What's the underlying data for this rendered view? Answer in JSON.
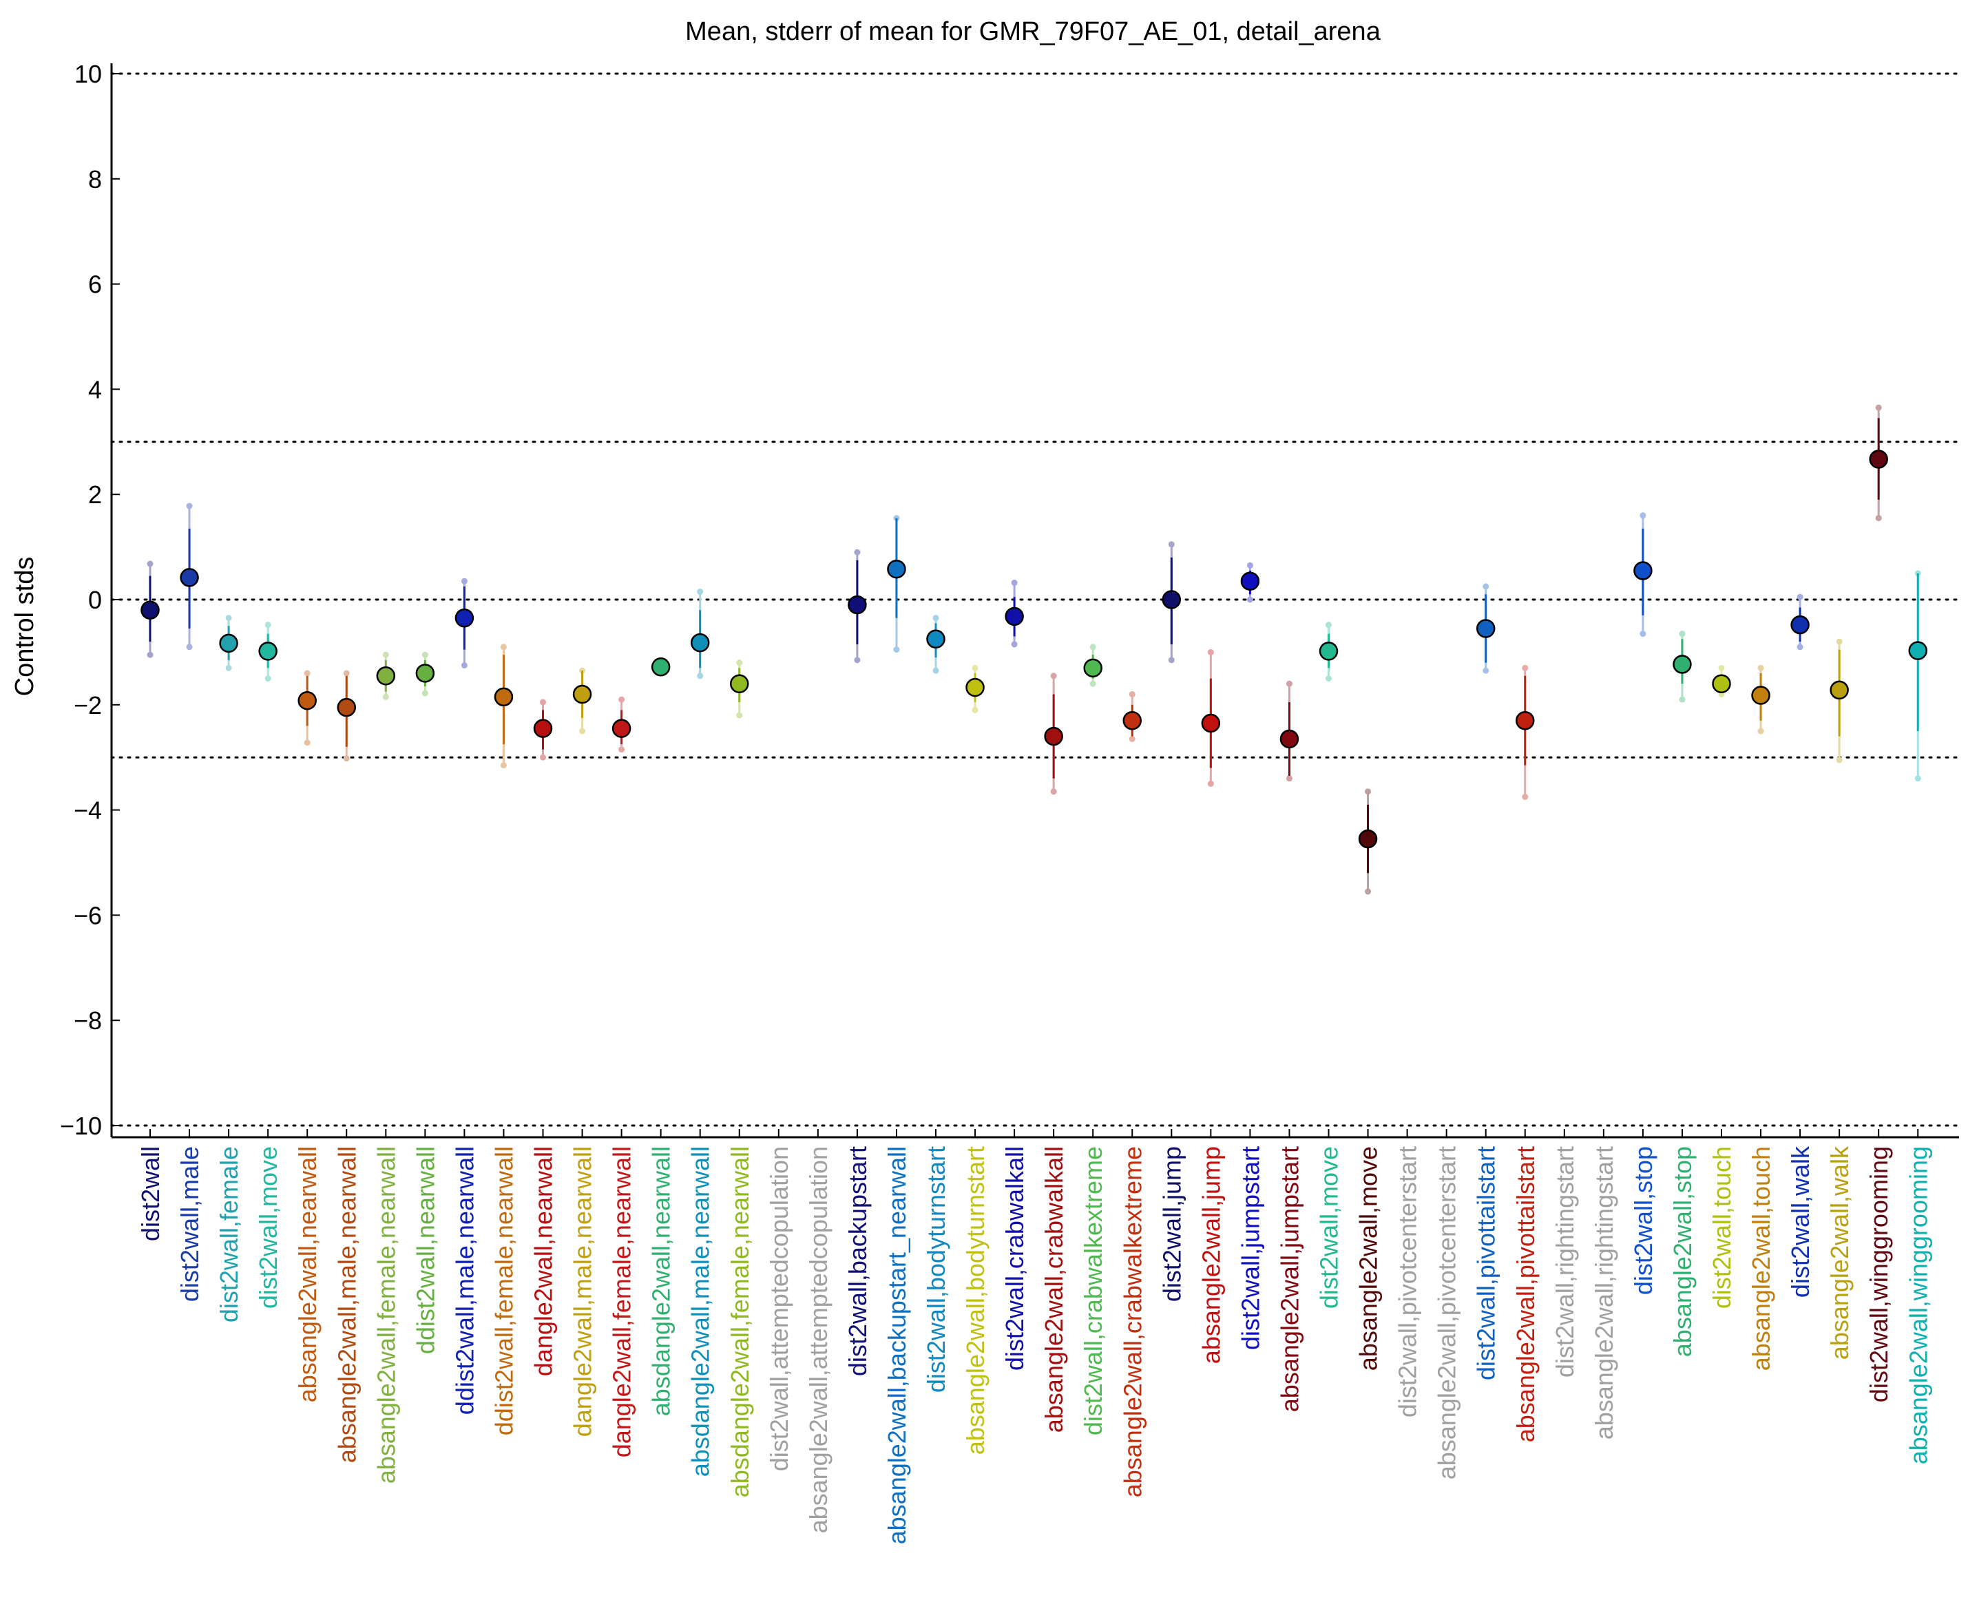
{
  "chart_data": {
    "type": "scatter",
    "title": "Mean, stderr of mean for GMR_79F07_AE_01, detail_arena",
    "ylabel": "Control stds",
    "xlabel": "",
    "ylim": [
      -10,
      10
    ],
    "yticks": [
      10,
      8,
      6,
      4,
      2,
      0,
      -2,
      -4,
      -6,
      -8,
      -10
    ],
    "ytick_labels": [
      "10",
      "8",
      "6",
      "4",
      "2",
      "0",
      "−2",
      "−4",
      "−6",
      "−8",
      "−10"
    ],
    "reference_lines": [
      10,
      3,
      0,
      -3,
      -10
    ],
    "grid": false,
    "legend": "none",
    "points": [
      {
        "label": "dist2wall",
        "mean": -0.2,
        "se_lo": -0.8,
        "se_hi": 0.45,
        "lo": -1.05,
        "hi": 0.68,
        "color": "#10106e"
      },
      {
        "label": "dist2wall,male",
        "mean": 0.42,
        "se_lo": -0.55,
        "se_hi": 1.35,
        "lo": -0.9,
        "hi": 1.78,
        "color": "#1a3aa8"
      },
      {
        "label": "dist2wall,female",
        "mean": -0.83,
        "se_lo": -1.15,
        "se_hi": -0.5,
        "lo": -1.3,
        "hi": -0.35,
        "color": "#22a0ae"
      },
      {
        "label": "dist2wall,move",
        "mean": -0.98,
        "se_lo": -1.3,
        "se_hi": -0.65,
        "lo": -1.5,
        "hi": -0.48,
        "color": "#22b8a0"
      },
      {
        "label": "absangle2wall,nearwall",
        "mean": -1.92,
        "se_lo": -2.4,
        "se_hi": -1.45,
        "lo": -2.72,
        "hi": -1.4,
        "color": "#c05a10"
      },
      {
        "label": "absangle2wall,male,nearwall",
        "mean": -2.05,
        "se_lo": -2.8,
        "se_hi": -1.45,
        "lo": -3.02,
        "hi": -1.4,
        "color": "#b04a10"
      },
      {
        "label": "absangle2wall,female,nearwall",
        "mean": -1.45,
        "se_lo": -1.75,
        "se_hi": -1.15,
        "lo": -1.85,
        "hi": -1.05,
        "color": "#80b040"
      },
      {
        "label": "ddist2wall,nearwall",
        "mean": -1.4,
        "se_lo": -1.65,
        "se_hi": -1.15,
        "lo": -1.78,
        "hi": -1.05,
        "color": "#66b040"
      },
      {
        "label": "ddist2wall,male,nearwall",
        "mean": -0.35,
        "se_lo": -0.95,
        "se_hi": 0.25,
        "lo": -1.25,
        "hi": 0.35,
        "color": "#1020b0"
      },
      {
        "label": "ddist2wall,female,nearwall",
        "mean": -1.85,
        "se_lo": -2.75,
        "se_hi": -1.05,
        "lo": -3.15,
        "hi": -0.9,
        "color": "#c06a10"
      },
      {
        "label": "dangle2wall,nearwall",
        "mean": -2.45,
        "se_lo": -2.85,
        "se_hi": -2.1,
        "lo": -3.0,
        "hi": -1.95,
        "color": "#b81010"
      },
      {
        "label": "dangle2wall,male,nearwall",
        "mean": -1.8,
        "se_lo": -2.25,
        "se_hi": -1.35,
        "lo": -2.5,
        "hi": -1.35,
        "color": "#c0a010"
      },
      {
        "label": "dangle2wall,female,nearwall",
        "mean": -2.45,
        "se_lo": -2.75,
        "se_hi": -2.1,
        "lo": -2.85,
        "hi": -1.9,
        "color": "#c01818"
      },
      {
        "label": "absdangle2wall,nearwall",
        "mean": -1.28,
        "se_lo": -1.28,
        "se_hi": -1.28,
        "lo": -1.28,
        "hi": -1.28,
        "color": "#30b070"
      },
      {
        "label": "absdangle2wall,male,nearwall",
        "mean": -0.82,
        "se_lo": -1.3,
        "se_hi": -0.2,
        "lo": -1.45,
        "hi": 0.15,
        "color": "#1090b8"
      },
      {
        "label": "absdangle2wall,female,nearwall",
        "mean": -1.6,
        "se_lo": -1.95,
        "se_hi": -1.3,
        "lo": -2.2,
        "hi": -1.2,
        "color": "#90b820"
      },
      {
        "label": "dist2wall,attemptedcopulation",
        "mean": null,
        "color": "#a0a0a0"
      },
      {
        "label": "absangle2wall,attemptedcopulation",
        "mean": null,
        "color": "#a0a0a0"
      },
      {
        "label": "dist2wall,backupstart",
        "mean": -0.1,
        "se_lo": -0.85,
        "se_hi": 0.75,
        "lo": -1.15,
        "hi": 0.9,
        "color": "#101078"
      },
      {
        "label": "absangle2wall,backupstart_nearwall",
        "mean": 0.58,
        "se_lo": -0.35,
        "se_hi": 1.55,
        "lo": -0.95,
        "hi": 1.55,
        "color": "#1070c0"
      },
      {
        "label": "dist2wall,bodyturnstart",
        "mean": -0.75,
        "se_lo": -1.1,
        "se_hi": -0.45,
        "lo": -1.35,
        "hi": -0.35,
        "color": "#1088c0"
      },
      {
        "label": "absangle2wall,bodyturnstart",
        "mean": -1.67,
        "se_lo": -1.95,
        "se_hi": -1.4,
        "lo": -2.1,
        "hi": -1.3,
        "color": "#c0c010"
      },
      {
        "label": "dist2wall,crabwalkall",
        "mean": -0.32,
        "se_lo": -0.7,
        "se_hi": 0.05,
        "lo": -0.85,
        "hi": 0.32,
        "color": "#1010a8"
      },
      {
        "label": "absangle2wall,crabwalkall",
        "mean": -2.6,
        "se_lo": -3.4,
        "se_hi": -1.8,
        "lo": -3.65,
        "hi": -1.45,
        "color": "#a01010"
      },
      {
        "label": "dist2wall,crabwalkextreme",
        "mean": -1.3,
        "se_lo": -1.5,
        "se_hi": -1.05,
        "lo": -1.6,
        "hi": -0.9,
        "color": "#50b850"
      },
      {
        "label": "absangle2wall,crabwalkextreme",
        "mean": -2.3,
        "se_lo": -2.6,
        "se_hi": -2.0,
        "lo": -2.65,
        "hi": -1.8,
        "color": "#c03010"
      },
      {
        "label": "dist2wall,jump",
        "mean": 0.0,
        "se_lo": -0.85,
        "se_hi": 0.8,
        "lo": -1.15,
        "hi": 1.05,
        "color": "#101068"
      },
      {
        "label": "absangle2wall,jump",
        "mean": -2.35,
        "se_lo": -3.2,
        "se_hi": -1.5,
        "lo": -3.5,
        "hi": -1.0,
        "color": "#c01010"
      },
      {
        "label": "dist2wall,jumpstart",
        "mean": 0.35,
        "se_lo": 0.1,
        "se_hi": 0.55,
        "lo": 0.0,
        "hi": 0.65,
        "color": "#1010c0"
      },
      {
        "label": "absangle2wall,jumpstart",
        "mean": -2.65,
        "se_lo": -3.35,
        "se_hi": -1.95,
        "lo": -3.4,
        "hi": -1.6,
        "color": "#800810"
      },
      {
        "label": "dist2wall,move",
        "mean": -0.98,
        "se_lo": -1.3,
        "se_hi": -0.65,
        "lo": -1.5,
        "hi": -0.48,
        "color": "#22b890"
      },
      {
        "label": "absangle2wall,move",
        "mean": -4.55,
        "se_lo": -5.2,
        "se_hi": -3.9,
        "lo": -5.55,
        "hi": -3.65,
        "color": "#500808"
      },
      {
        "label": "dist2wall,pivotcenterstart",
        "mean": null,
        "color": "#a0a0a0"
      },
      {
        "label": "absangle2wall,pivotcenterstart",
        "mean": null,
        "color": "#a0a0a0"
      },
      {
        "label": "dist2wall,pivottailstart",
        "mean": -0.55,
        "se_lo": -1.2,
        "se_hi": 0.1,
        "lo": -1.35,
        "hi": 0.25,
        "color": "#1060c0"
      },
      {
        "label": "absangle2wall,pivottailstart",
        "mean": -2.3,
        "se_lo": -3.15,
        "se_hi": -1.45,
        "lo": -3.75,
        "hi": -1.3,
        "color": "#c02010"
      },
      {
        "label": "dist2wall,rightingstart",
        "mean": null,
        "color": "#a0a0a0"
      },
      {
        "label": "absangle2wall,rightingstart",
        "mean": null,
        "color": "#a0a0a0"
      },
      {
        "label": "dist2wall,stop",
        "mean": 0.55,
        "se_lo": -0.3,
        "se_hi": 1.35,
        "lo": -0.65,
        "hi": 1.6,
        "color": "#1050c8"
      },
      {
        "label": "absangle2wall,stop",
        "mean": -1.23,
        "se_lo": -1.6,
        "se_hi": -0.75,
        "lo": -1.9,
        "hi": -0.65,
        "color": "#30b070"
      },
      {
        "label": "dist2wall,touch",
        "mean": -1.6,
        "se_lo": -1.75,
        "se_hi": -1.45,
        "lo": -1.8,
        "hi": -1.3,
        "color": "#b0c010"
      },
      {
        "label": "absangle2wall,touch",
        "mean": -1.82,
        "se_lo": -2.3,
        "se_hi": -1.4,
        "lo": -2.5,
        "hi": -1.3,
        "color": "#c08010"
      },
      {
        "label": "dist2wall,walk",
        "mean": -0.48,
        "se_lo": -0.8,
        "se_hi": -0.15,
        "lo": -0.9,
        "hi": 0.05,
        "color": "#1030b0"
      },
      {
        "label": "absangle2wall,walk",
        "mean": -1.72,
        "se_lo": -2.6,
        "se_hi": -0.95,
        "lo": -3.05,
        "hi": -0.8,
        "color": "#b8a010"
      },
      {
        "label": "dist2wall,winggrooming",
        "mean": 2.67,
        "se_lo": 1.9,
        "se_hi": 3.45,
        "lo": 1.55,
        "hi": 3.65,
        "color": "#600810"
      },
      {
        "label": "absangle2wall,winggrooming",
        "mean": -0.97,
        "se_lo": -2.5,
        "se_hi": 0.5,
        "lo": -3.4,
        "hi": 0.5,
        "color": "#10b0b0"
      }
    ]
  }
}
